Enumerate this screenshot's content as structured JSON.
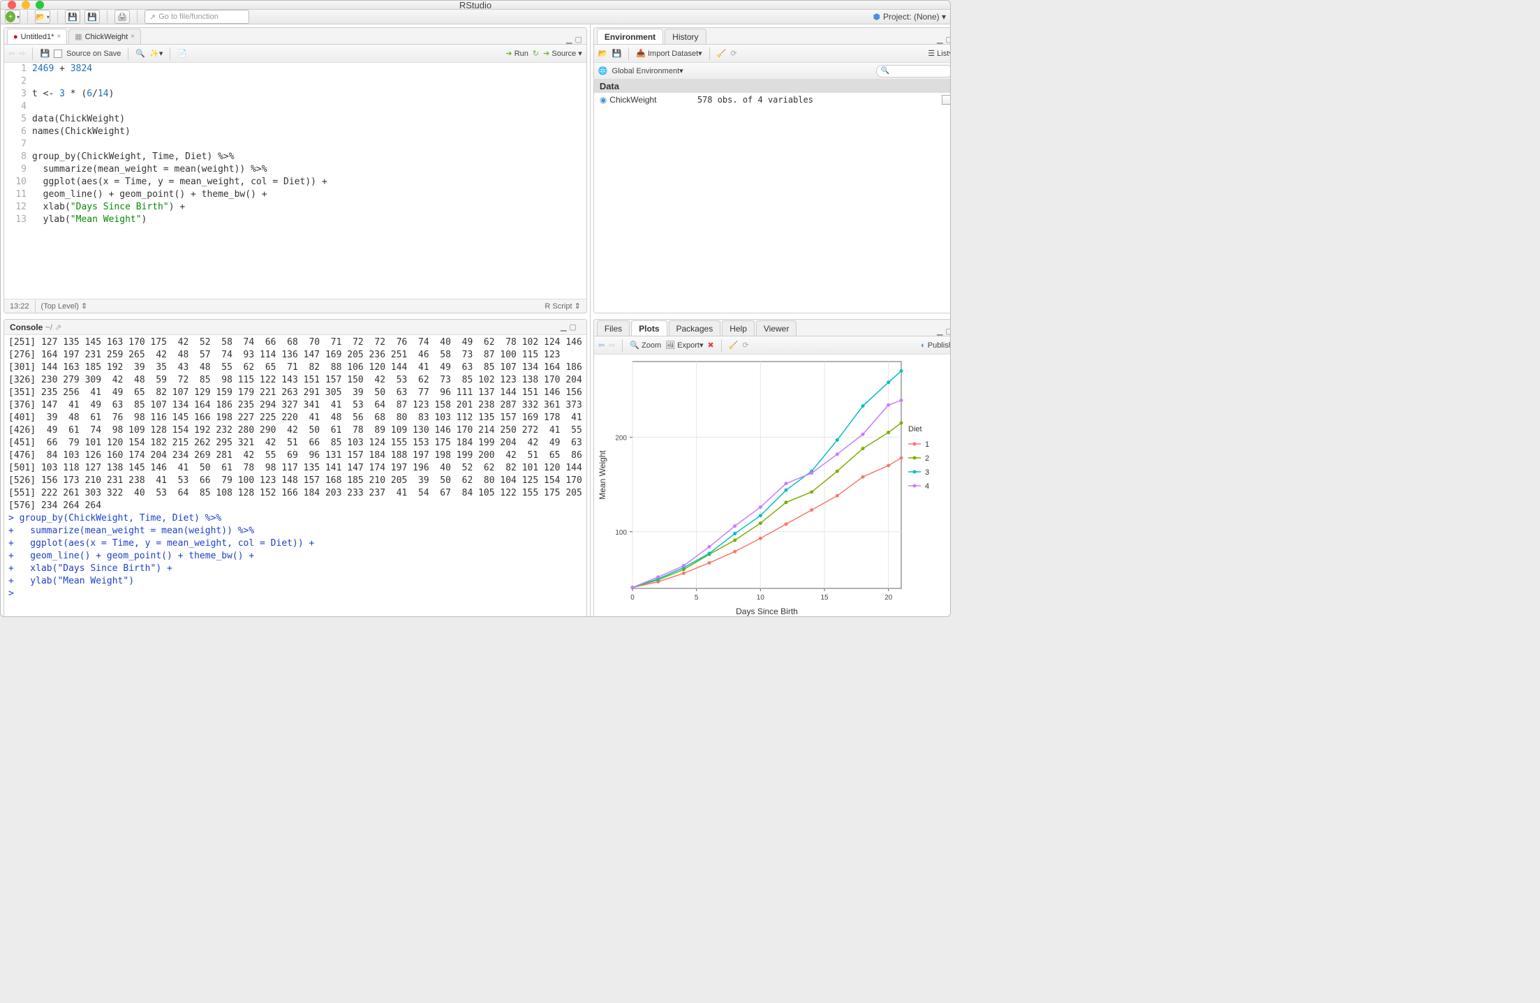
{
  "window": {
    "title": "RStudio",
    "project_label": "Project: (None)"
  },
  "goto_placeholder": "Go to file/function",
  "source_pane": {
    "tabs": [
      {
        "label": "Untitled1*",
        "active": true,
        "dirty": true
      },
      {
        "label": "ChickWeight",
        "active": false,
        "dirty": false
      }
    ],
    "source_on_save": "Source on Save",
    "run_label": "Run",
    "source_label": "Source",
    "status_pos": "13:22",
    "status_scope": "(Top Level)",
    "status_type": "R Script",
    "lines": [
      "2469 + 3824",
      "",
      "t <- 3 * (6/14)",
      "",
      "data(ChickWeight)",
      "names(ChickWeight)",
      "",
      "group_by(ChickWeight, Time, Diet) %>%",
      "  summarize(mean_weight = mean(weight)) %>%",
      "  ggplot(aes(x = Time, y = mean_weight, col = Diet)) +",
      "  geom_line() + geom_point() + theme_bw() +",
      "  xlab(\"Days Since Birth\") +",
      "  ylab(\"Mean Weight\")"
    ]
  },
  "console": {
    "title": "Console",
    "path": "~/",
    "output_rows": [
      "[251] 127 135 145 163 170 175  42  52  58  74  66  68  70  71  72  72  76  74  40  49  62  78 102 124 146",
      "[276] 164 197 231 259 265  42  48  57  74  93 114 136 147 169 205 236 251  46  58  73  87 100 115 123",
      "[301] 144 163 185 192  39  35  43  48  55  62  65  71  82  88 106 120 144  41  49  63  85 107 134 164 186",
      "[326] 230 279 309  42  48  59  72  85  98 115 122 143 151 157 150  42  53  62  73  85 102 123 138 170 204",
      "[351] 235 256  41  49  65  82 107 129 159 179 221 263 291 305  39  50  63  77  96 111 137 144 151 146 156",
      "[376] 147  41  49  63  85 107 134 164 186 235 294 327 341  41  53  64  87 123 158 201 238 287 332 361 373",
      "[401]  39  48  61  76  98 116 145 166 198 227 225 220  41  48  56  68  80  83 103 112 135 157 169 178  41",
      "[426]  49  61  74  98 109 128 154 192 232 280 290  42  50  61  78  89 109 130 146 170 214 250 272  41  55",
      "[451]  66  79 101 120 154 182 215 262 295 321  42  51  66  85 103 124 155 153 175 184 199 204  42  49  63",
      "[476]  84 103 126 160 174 204 234 269 281  42  55  69  96 131 157 184 188 197 198 199 200  42  51  65  86",
      "[501] 103 118 127 138 145 146  41  50  61  78  98 117 135 141 147 174 197 196  40  52  62  82 101 120 144",
      "[526] 156 173 210 231 238  41  53  66  79 100 123 148 157 168 185 210 205  39  50  62  80 104 125 154 170",
      "[551] 222 261 303 322  40  53  64  85 108 128 152 166 184 203 233 237  41  54  67  84 105 122 155 175 205",
      "[576] 234 264 264"
    ],
    "commands": [
      "> group_by(ChickWeight, Time, Diet) %>%",
      "+   summarize(mean_weight = mean(weight)) %>%",
      "+   ggplot(aes(x = Time, y = mean_weight, col = Diet)) +",
      "+   geom_line() + geom_point() + theme_bw() +",
      "+   xlab(\"Days Since Birth\") +",
      "+   ylab(\"Mean Weight\")",
      "> "
    ]
  },
  "env_pane": {
    "tabs": [
      "Environment",
      "History"
    ],
    "active_tab": 0,
    "import_label": "Import Dataset",
    "list_label": "List",
    "scope_label": "Global Environment",
    "section": "Data",
    "rows": [
      {
        "name": "ChickWeight",
        "value": "578 obs. of 4 variables"
      }
    ]
  },
  "br_pane": {
    "tabs": [
      "Files",
      "Plots",
      "Packages",
      "Help",
      "Viewer"
    ],
    "active_tab": 1,
    "zoom_label": "Zoom",
    "export_label": "Export",
    "publish_label": "Publish"
  },
  "plot": {
    "type": "line+point",
    "xlabel": "Days Since Birth",
    "ylabel": "Mean Weight",
    "legend_title": "Diet",
    "xlim": [
      0,
      21
    ],
    "xticks": [
      0,
      5,
      10,
      15,
      20
    ],
    "ylim": [
      40,
      280
    ],
    "yticks": [
      100,
      200
    ],
    "background": "#ffffff",
    "panel_border": "#666666",
    "grid_color": "#e6e6e6",
    "tick_fontsize": 10,
    "label_fontsize": 12,
    "point_radius": 2.5,
    "line_width": 1.5,
    "x": [
      0,
      2,
      4,
      6,
      8,
      10,
      12,
      14,
      16,
      18,
      20,
      21
    ],
    "series": [
      {
        "name": "1",
        "color": "#f8766d",
        "y": [
          41,
          47,
          56,
          67,
          79,
          93,
          108,
          123,
          138,
          158,
          170,
          178
        ]
      },
      {
        "name": "2",
        "color": "#7cae00",
        "y": [
          41,
          49,
          60,
          76,
          91,
          109,
          131,
          142,
          164,
          188,
          205,
          215
        ]
      },
      {
        "name": "3",
        "color": "#00bfc4",
        "y": [
          41,
          50,
          62,
          77,
          98,
          117,
          144,
          164,
          197,
          233,
          258,
          270
        ]
      },
      {
        "name": "4",
        "color": "#c77cff",
        "y": [
          41,
          52,
          64,
          84,
          106,
          126,
          151,
          162,
          182,
          203,
          234,
          239
        ]
      }
    ]
  }
}
